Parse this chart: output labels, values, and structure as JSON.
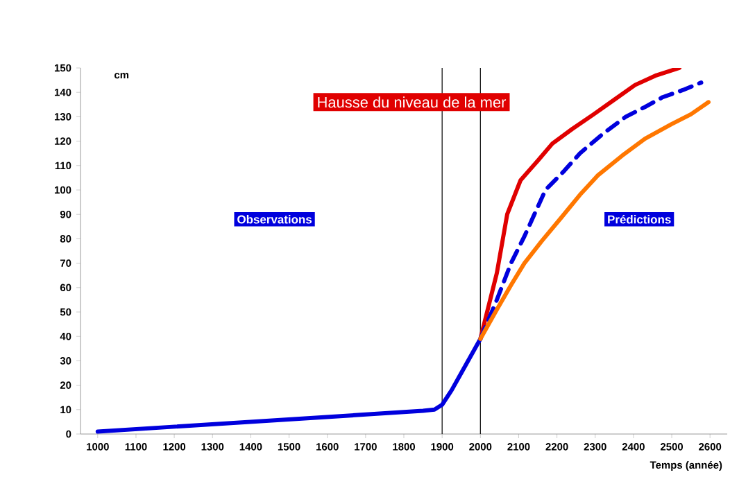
{
  "chart_data": {
    "type": "line",
    "title": "Hausse du niveau de la mer",
    "xlabel": "Temps (année)",
    "ylabel": "cm",
    "annotations": [
      "Observations",
      "Prédictions"
    ],
    "xlim": [
      955,
      2645
    ],
    "xticks": [
      1000,
      1100,
      1200,
      1300,
      1400,
      1500,
      1600,
      1700,
      1800,
      1900,
      2000,
      2100,
      2200,
      2300,
      2400,
      2500,
      2600
    ],
    "ylim": [
      0,
      150
    ],
    "yticks": [
      0,
      10,
      20,
      30,
      40,
      50,
      60,
      70,
      80,
      90,
      100,
      110,
      120,
      130,
      140,
      150
    ],
    "grid": false,
    "ref_lines": [
      {
        "axis": "x",
        "value": 1900,
        "color": "#000000"
      },
      {
        "axis": "x",
        "value": 2000,
        "color": "#000000"
      }
    ],
    "series": [
      {
        "color": "#0000dd",
        "line_style": "solid",
        "x": [
          1000,
          1200,
          1400,
          1600,
          1800,
          1850,
          1880,
          1900,
          1925,
          1950,
          1975,
          2000
        ],
        "values": [
          1,
          3,
          5,
          7,
          9,
          9.5,
          10,
          12,
          18,
          25,
          32,
          39
        ]
      },
      {
        "color": "#e00000",
        "line_style": "solid",
        "x": [
          2000,
          2043,
          2070,
          2105,
          2150,
          2188,
          2240,
          2296,
          2350,
          2404,
          2460,
          2520
        ],
        "values": [
          39,
          66,
          90,
          104,
          112,
          119,
          125,
          131,
          137,
          143,
          147,
          150
        ]
      },
      {
        "color": "#0000dd",
        "line_style": "dashed",
        "x": [
          2000,
          2043,
          2080,
          2115,
          2170,
          2220,
          2260,
          2320,
          2380,
          2430,
          2476,
          2530,
          2577
        ],
        "values": [
          39,
          55,
          70,
          81,
          100,
          108,
          115,
          123,
          130,
          134,
          138,
          141,
          144
        ]
      },
      {
        "color": "#ff7700",
        "line_style": "solid",
        "x": [
          2000,
          2043,
          2080,
          2115,
          2160,
          2213,
          2260,
          2307,
          2370,
          2430,
          2500,
          2550,
          2596
        ],
        "values": [
          39,
          51,
          61,
          70,
          79,
          89,
          98,
          106,
          114,
          121,
          127,
          131,
          136
        ]
      }
    ]
  }
}
